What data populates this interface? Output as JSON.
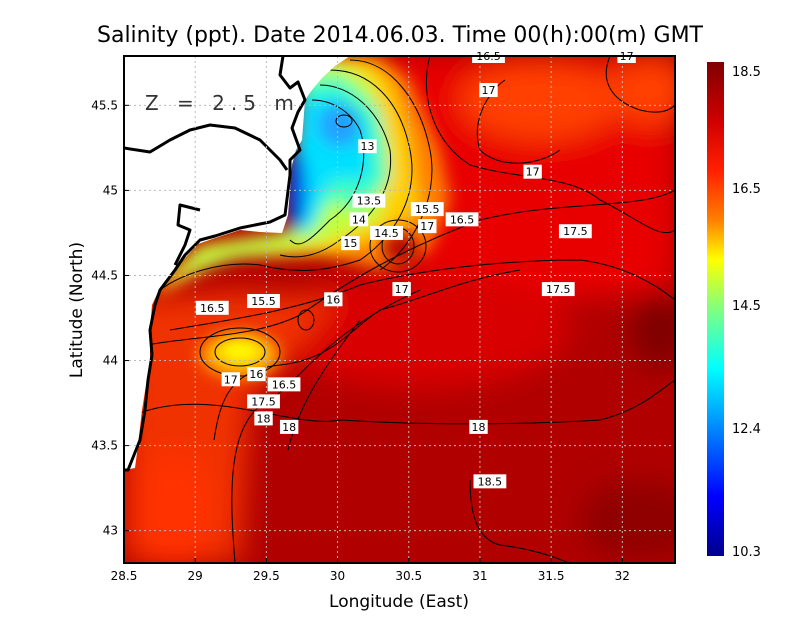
{
  "chart_data": {
    "type": "heatmap",
    "title": "Salinity (ppt). Date 2014.06.03. Time 00(h):00(m) GMT",
    "annotation": "Z = 2.5 m",
    "xlabel": "Longitude (East)",
    "ylabel": "Latitude (North)",
    "xlim": [
      28.5,
      32.37
    ],
    "ylim": [
      42.81,
      45.79
    ],
    "x_ticks": [
      "28.5",
      "29",
      "29.5",
      "30",
      "30.5",
      "31",
      "31.5",
      "32"
    ],
    "y_ticks": [
      "43",
      "43.5",
      "44",
      "44.5",
      "45",
      "45.5"
    ],
    "grid": true,
    "colorbar": {
      "range": [
        10.3,
        18.5
      ],
      "tick_labels": [
        "18.5",
        "16.5",
        "14.5",
        "12.4",
        "10.3"
      ],
      "colors": [
        "#800000",
        "#ff0000",
        "#ff8000",
        "#ffff00",
        "#80ff80",
        "#00ffff",
        "#0080ff",
        "#0000ff",
        "#00008c"
      ]
    },
    "contour_labels": [
      {
        "text": "16.5",
        "lon": 31.06,
        "lat": 45.79
      },
      {
        "text": "17",
        "lon": 32.03,
        "lat": 45.79
      },
      {
        "text": "17",
        "lon": 31.06,
        "lat": 45.59
      },
      {
        "text": "13",
        "lon": 30.21,
        "lat": 45.26
      },
      {
        "text": "17",
        "lon": 31.37,
        "lat": 45.11
      },
      {
        "text": "13.5",
        "lon": 30.22,
        "lat": 44.94
      },
      {
        "text": "15.5",
        "lon": 30.63,
        "lat": 44.89
      },
      {
        "text": "16.5",
        "lon": 30.7,
        "lat": 44.83
      },
      {
        "text": "14",
        "lon": 30.15,
        "lat": 44.83
      },
      {
        "text": "17",
        "lon": 30.63,
        "lat": 44.79
      },
      {
        "text": "14.5",
        "lon": 30.1,
        "lat": 44.75
      },
      {
        "text": "15",
        "lon": 30.09,
        "lat": 44.69
      },
      {
        "text": "17.5",
        "lon": 31.67,
        "lat": 44.76
      },
      {
        "text": "17",
        "lon": 30.45,
        "lat": 44.42
      },
      {
        "text": "17.5",
        "lon": 31.55,
        "lat": 44.42
      },
      {
        "text": "16.5",
        "lon": 29.12,
        "lat": 44.31
      },
      {
        "text": "15.5",
        "lon": 29.48,
        "lat": 44.35
      },
      {
        "text": "16",
        "lon": 29.97,
        "lat": 44.36
      },
      {
        "text": "16",
        "lon": 29.43,
        "lat": 43.92
      },
      {
        "text": "17",
        "lon": 29.25,
        "lat": 43.89
      },
      {
        "text": "16.5",
        "lon": 29.48,
        "lat": 43.86
      },
      {
        "text": "17.5",
        "lon": 29.48,
        "lat": 43.76
      },
      {
        "text": "18",
        "lon": 29.48,
        "lat": 43.66
      },
      {
        "text": "18",
        "lon": 29.66,
        "lat": 43.61
      },
      {
        "text": "18",
        "lon": 30.99,
        "lat": 43.61
      },
      {
        "text": "18.5",
        "lon": 31.07,
        "lat": 43.29
      }
    ]
  }
}
